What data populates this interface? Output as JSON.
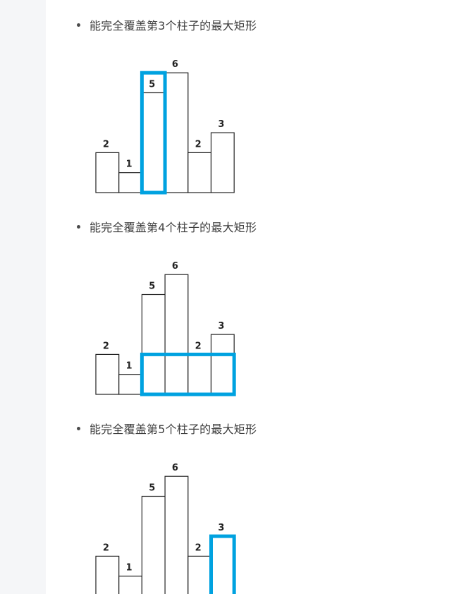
{
  "sections": [
    {
      "caption": "能完全覆盖第3个柱子的最大矩形",
      "highlight": {
        "from_bar": 3,
        "to_bar": 3,
        "height": 6
      }
    },
    {
      "caption": "能完全覆盖第4个柱子的最大矩形",
      "highlight": {
        "from_bar": 3,
        "to_bar": 6,
        "height": 2
      }
    },
    {
      "caption": "能完全覆盖第5个柱子的最大矩形",
      "highlight": {
        "from_bar": 6,
        "to_bar": 6,
        "height": 3
      }
    }
  ],
  "bars": {
    "heights": [
      2,
      1,
      5,
      6,
      2,
      3
    ],
    "labels": [
      "2",
      "1",
      "5",
      "6",
      "2",
      "3"
    ]
  },
  "colors": {
    "highlight": "#00a2e0",
    "bar_stroke": "#222222",
    "gutter": "#f5f6f8"
  }
}
